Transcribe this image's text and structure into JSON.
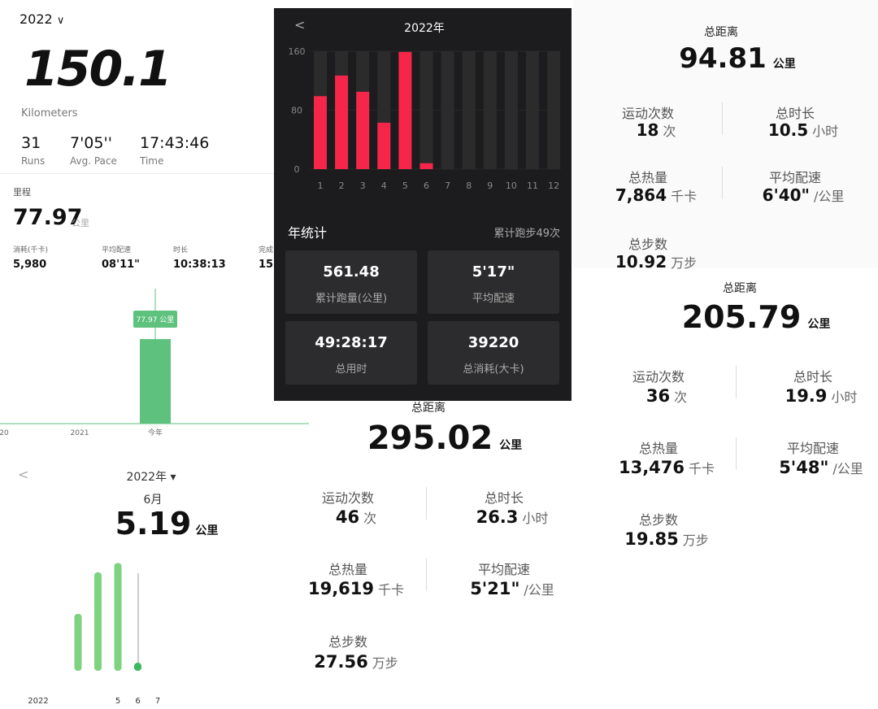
{
  "summary": {
    "year": "2022",
    "distance": "150.1",
    "unit": "Kilometers",
    "stats": [
      {
        "value": "31",
        "label": "Runs"
      },
      {
        "value": "7'05''",
        "label": "Avg. Pace"
      },
      {
        "value": "17:43:46",
        "label": "Time"
      }
    ]
  },
  "yearly": {
    "title": "里程",
    "distance": "77.97",
    "unit": "公里",
    "stats": [
      {
        "label": "消耗(千卡)",
        "value": "5,980"
      },
      {
        "label": "平均配速",
        "value": "08'11\""
      },
      {
        "label": "时长",
        "value": "10:38:13"
      },
      {
        "label": "完成",
        "value": "15"
      }
    ],
    "tooltip": "77.97 公里",
    "chart": {
      "type": "bar",
      "categories": [
        "20",
        "2021",
        "今年"
      ],
      "values": [
        0,
        0,
        77.97
      ],
      "ylim": [
        0,
        120
      ],
      "color": "#5ec27e"
    }
  },
  "dark": {
    "back": "<",
    "title": "2022年",
    "chart": {
      "type": "bar",
      "categories": [
        "1",
        "2",
        "3",
        "4",
        "5",
        "6",
        "7",
        "8",
        "9",
        "10",
        "11",
        "12"
      ],
      "values": [
        99,
        127,
        105,
        63,
        159,
        8,
        0,
        0,
        0,
        0,
        0,
        0
      ],
      "ylim": [
        0,
        160
      ],
      "yticks": [
        0,
        80,
        160
      ],
      "color": "#f5264a"
    },
    "section_title": "年统计",
    "section_note": "累计跑步49次",
    "tiles": [
      {
        "value": "561.48",
        "label": "累计跑量(公里)"
      },
      {
        "value": "5'17\"",
        "label": "平均配速"
      },
      {
        "value": "49:28:17",
        "label": "总用时"
      },
      {
        "value": "39220",
        "label": "总消耗(大卡)"
      }
    ]
  },
  "cards": [
    {
      "total_label": "总距离",
      "total": "94.81",
      "total_unit": "公里",
      "stats": [
        {
          "label": "运动次数",
          "value": "18",
          "unit": "次"
        },
        {
          "label": "总时长",
          "value": "10.5",
          "unit": "小时"
        },
        {
          "label": "总热量",
          "value": "7,864",
          "unit": "千卡"
        },
        {
          "label": "平均配速",
          "value": "6'40\"",
          "unit": "/公里"
        },
        {
          "label": "总步数",
          "value": "10.92",
          "unit": "万步"
        }
      ]
    },
    {
      "total_label": "总距离",
      "total": "205.79",
      "total_unit": "公里",
      "stats": [
        {
          "label": "运动次数",
          "value": "36",
          "unit": "次"
        },
        {
          "label": "总时长",
          "value": "19.9",
          "unit": "小时"
        },
        {
          "label": "总热量",
          "value": "13,476",
          "unit": "千卡"
        },
        {
          "label": "平均配速",
          "value": "5'48\"",
          "unit": "/公里"
        },
        {
          "label": "总步数",
          "value": "19.85",
          "unit": "万步"
        }
      ]
    },
    {
      "total_label": "总距离",
      "total": "295.02",
      "total_unit": "公里",
      "stats": [
        {
          "label": "运动次数",
          "value": "46",
          "unit": "次"
        },
        {
          "label": "总时长",
          "value": "26.3",
          "unit": "小时"
        },
        {
          "label": "总热量",
          "value": "19,619",
          "unit": "千卡"
        },
        {
          "label": "平均配速",
          "value": "5'21\"",
          "unit": "/公里"
        },
        {
          "label": "总步数",
          "value": "27.56",
          "unit": "万步"
        }
      ]
    }
  ],
  "monthly": {
    "back": "<",
    "year": "2022年 ▾",
    "month": "6月",
    "distance": "5.19",
    "unit": "公里",
    "chart": {
      "type": "bar",
      "categories": [
        "2022",
        null,
        null,
        null,
        "5",
        "6",
        "7"
      ],
      "values": [
        0,
        0,
        37,
        64,
        70,
        5.19,
        0
      ],
      "ylim": [
        0,
        75
      ],
      "color": "#7dd37f"
    }
  }
}
